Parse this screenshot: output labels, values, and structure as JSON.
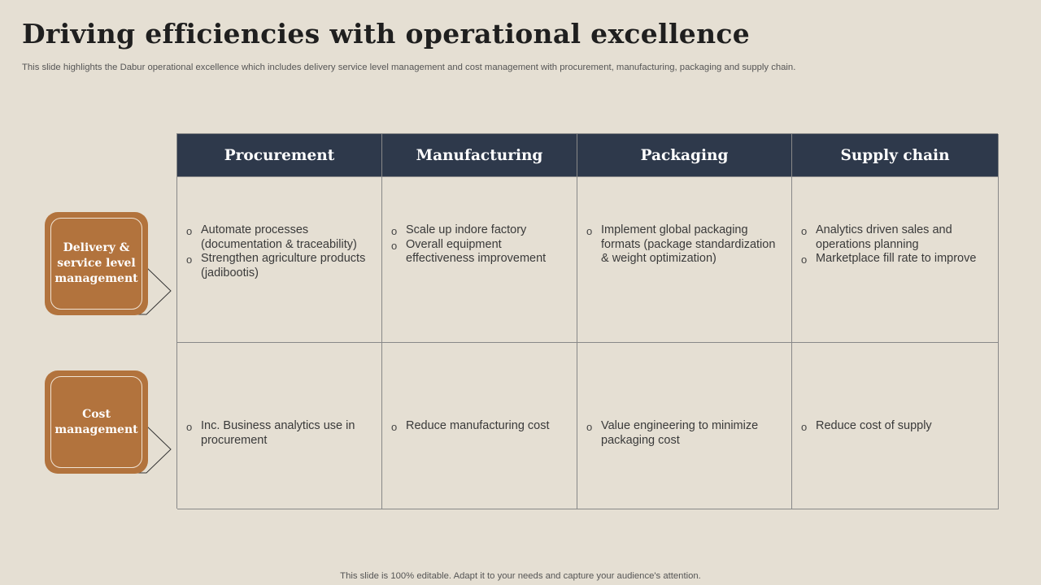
{
  "title": "Driving efficiencies with operational excellence",
  "subtitle": "This slide highlights the Dabur operational excellence which includes delivery service level management and cost management with procurement, manufacturing, packaging and supply chain.",
  "columns": [
    "Procurement",
    "Manufacturing",
    "Packaging",
    "Supply chain"
  ],
  "rows": [
    {
      "label": "Delivery & service level management",
      "cells": [
        [
          "Automate processes (documentation & traceability)",
          "Strengthen agriculture products (jadibootis)"
        ],
        [
          "Scale up indore factory",
          "Overall equipment effectiveness improvement"
        ],
        [
          "Implement global packaging formats (package standardization & weight optimization)"
        ],
        [
          "Analytics driven sales and operations planning",
          "Marketplace fill rate to improve"
        ]
      ]
    },
    {
      "label": "Cost management",
      "cells": [
        [
          "Inc. Business analytics use in procurement"
        ],
        [
          "Reduce manufacturing cost"
        ],
        [
          "Value engineering to minimize packaging cost"
        ],
        [
          "Reduce cost of supply"
        ]
      ]
    }
  ],
  "footer": "This slide is 100% editable. Adapt it to your needs and capture your audience's attention.",
  "colors": {
    "background": "#e5dfd3",
    "header": "#2e394b",
    "accent": "#b2733d"
  }
}
